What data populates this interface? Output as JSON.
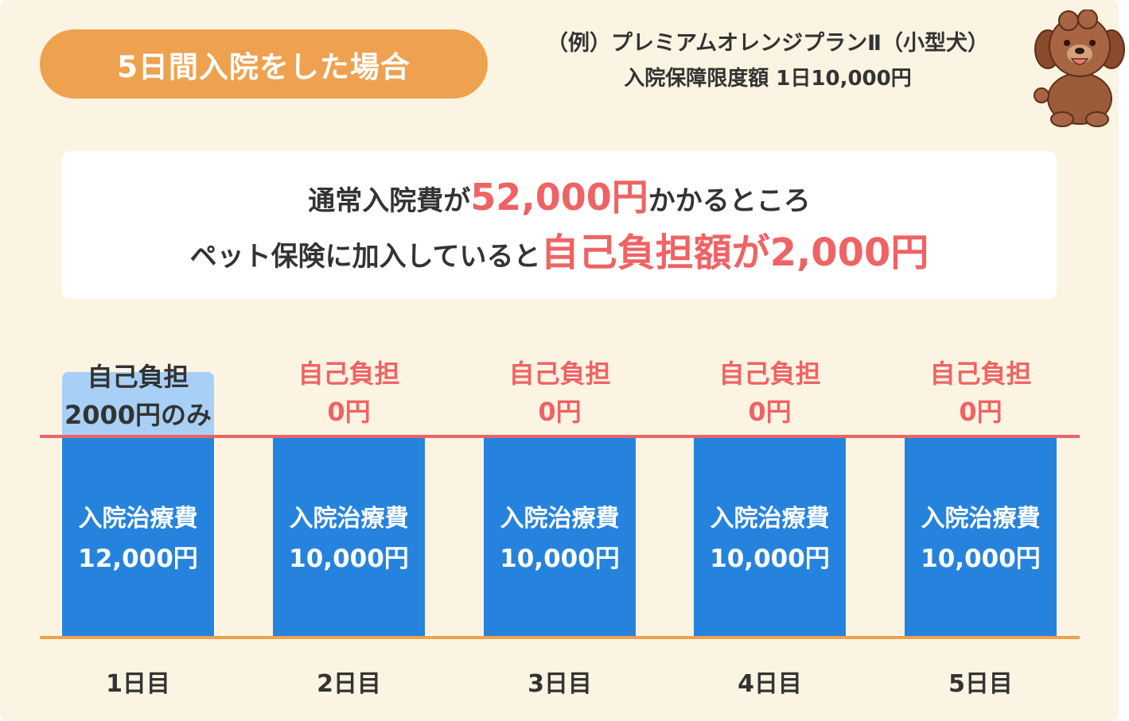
{
  "header": {
    "case_title": "5日間入院をした場合",
    "example_plan": "（例）プレミアムオレンジプランⅡ（小型犬）",
    "limit_text": "入院保障限度額 1日10,000円"
  },
  "summary": {
    "line1_pre": "通常入院費が",
    "line1_highlight": "52,000円",
    "line1_post": "かかるところ",
    "line2_pre": "ペット保険に加入していると",
    "line2_highlight": "自己負担額が2,000円"
  },
  "colors": {
    "background": "#fcf4e3",
    "accent_orange": "#eea24f",
    "accent_red": "#ef6364",
    "bar_blue": "#2683dd",
    "self_pay_light_blue": "#a8d0f6"
  },
  "days": [
    {
      "day": "1日目",
      "cost_label": "入院治療費",
      "cost": "12,000円",
      "self_label": "自己負担",
      "self_amount": "2000円のみ"
    },
    {
      "day": "2日目",
      "cost_label": "入院治療費",
      "cost": "10,000円",
      "self_label": "自己負担",
      "self_amount": "0円"
    },
    {
      "day": "3日目",
      "cost_label": "入院治療費",
      "cost": "10,000円",
      "self_label": "自己負担",
      "self_amount": "0円"
    },
    {
      "day": "4日目",
      "cost_label": "入院治療費",
      "cost": "10,000円",
      "self_label": "自己負担",
      "self_amount": "0円"
    },
    {
      "day": "5日目",
      "cost_label": "入院治療費",
      "cost": "10,000円",
      "self_label": "自己負担",
      "self_amount": "0円"
    }
  ],
  "mascot": {
    "icon": "dog-mascot-icon"
  }
}
